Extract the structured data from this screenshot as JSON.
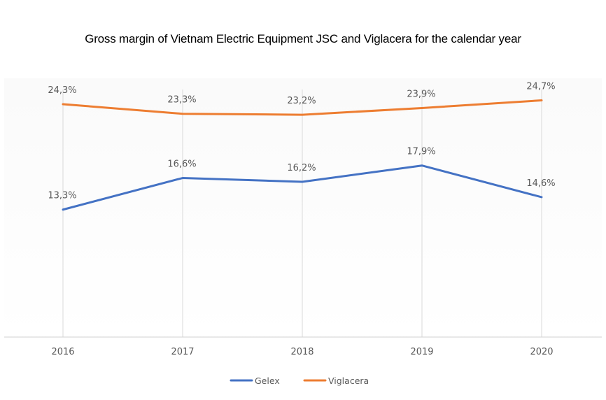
{
  "chart_data": {
    "type": "line",
    "title": "Gross margin of Vietnam Electric Equipment JSC and Viglacera for the calendar year",
    "xlabel": "",
    "ylabel": "",
    "categories": [
      "2016",
      "2017",
      "2018",
      "2019",
      "2020"
    ],
    "ylim": [
      0,
      27
    ],
    "grid": "vertical",
    "legend_position": "bottom",
    "series": [
      {
        "name": "Gelex",
        "color": "#4472c4",
        "values": [
          13.3,
          16.6,
          16.2,
          17.9,
          14.6
        ],
        "labels": [
          "13,3%",
          "16,6%",
          "16,2%",
          "17,9%",
          "14,6%"
        ]
      },
      {
        "name": "Viglacera",
        "color": "#ed7d31",
        "values": [
          24.3,
          23.3,
          23.2,
          23.9,
          24.7
        ],
        "labels": [
          "24,3%",
          "23,3%",
          "23,2%",
          "23,9%",
          "24,7%"
        ]
      }
    ]
  }
}
